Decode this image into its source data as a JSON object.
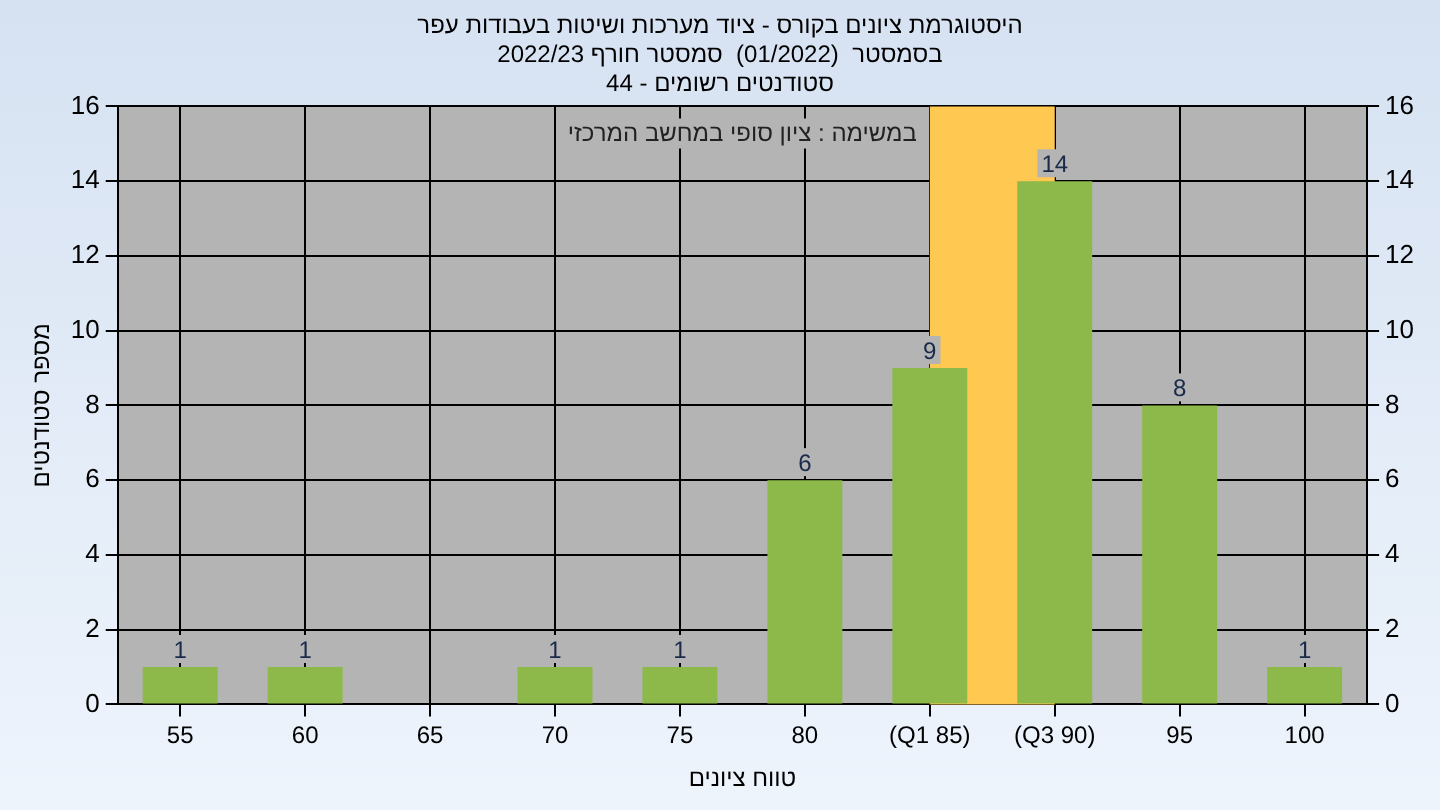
{
  "chart_data": {
    "type": "bar",
    "title": "היסטוגרמת ציונים בקורס - ציוד מערכות ושיטות בעבודות עפר",
    "subtitle": "בסמסטר  (01/2022)  סמסטר חורף 2022/23\nסטודנטים רשומים - 44",
    "xlabel": "טווח ציונים",
    "ylabel": "מספר סטודנטים",
    "annotations": [
      "במשימה : ציון סופי במחשב המרכזי"
    ],
    "categories": [
      "55",
      "60",
      "65",
      "70",
      "75",
      "80",
      "(Q1 85)",
      "(Q3 90)",
      "95",
      "100"
    ],
    "values": [
      1,
      1,
      0,
      1,
      1,
      6,
      9,
      14,
      8,
      1
    ],
    "color": "#8db84a",
    "value_labels": [
      "1",
      "1",
      null,
      "1",
      "1",
      "6",
      "9",
      "14",
      "8",
      "1"
    ],
    "bands": [
      {
        "axis": "x",
        "from": "(Q1 85)",
        "to": "(Q3 90)",
        "color": "#ffc850"
      }
    ],
    "ylim": [
      0,
      16
    ],
    "yticks": [
      0,
      2,
      4,
      6,
      8,
      10,
      12,
      14,
      16
    ],
    "y2lim": [
      0,
      16
    ],
    "y2ticks": [
      0,
      2,
      4,
      6,
      8,
      10,
      12,
      14,
      16
    ],
    "grid": true,
    "legend": false
  }
}
